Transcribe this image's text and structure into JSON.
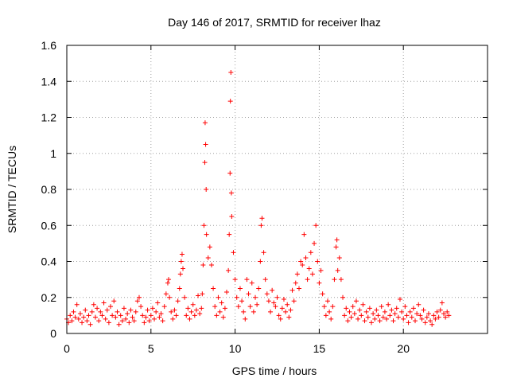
{
  "chart_data": {
    "type": "scatter",
    "title": "Day 146 of 2017, SRMTID for receiver lhaz",
    "xlabel": "GPS time / hours",
    "ylabel": "SRMTID / TECUs",
    "xlim": [
      0,
      25
    ],
    "ylim": [
      0,
      1.6
    ],
    "x_ticks": [
      0,
      5,
      10,
      15,
      20
    ],
    "x_tick_labels": [
      "0",
      "5",
      "10",
      "15",
      "20"
    ],
    "y_ticks": [
      0,
      0.2,
      0.4,
      0.6,
      0.8,
      1.0,
      1.2,
      1.4,
      1.6
    ],
    "y_tick_labels": [
      "0",
      "0.2",
      "0.4",
      "0.6",
      "0.8",
      "1",
      "1.2",
      "1.4",
      "1.6"
    ],
    "grid": true,
    "marker": "plus",
    "marker_color": "#ff0000",
    "series": [
      {
        "name": "SRMTID",
        "points": [
          [
            0.0,
            0.08
          ],
          [
            0.1,
            0.06
          ],
          [
            0.2,
            0.1
          ],
          [
            0.3,
            0.07
          ],
          [
            0.4,
            0.12
          ],
          [
            0.5,
            0.09
          ],
          [
            0.6,
            0.16
          ],
          [
            0.7,
            0.08
          ],
          [
            0.8,
            0.11
          ],
          [
            0.9,
            0.06
          ],
          [
            1.0,
            0.09
          ],
          [
            1.1,
            0.13
          ],
          [
            1.2,
            0.07
          ],
          [
            1.3,
            0.1
          ],
          [
            1.4,
            0.05
          ],
          [
            1.5,
            0.12
          ],
          [
            1.6,
            0.16
          ],
          [
            1.7,
            0.09
          ],
          [
            1.8,
            0.14
          ],
          [
            1.9,
            0.07
          ],
          [
            2.0,
            0.12
          ],
          [
            2.1,
            0.1
          ],
          [
            2.2,
            0.17
          ],
          [
            2.3,
            0.08
          ],
          [
            2.4,
            0.13
          ],
          [
            2.5,
            0.06
          ],
          [
            2.6,
            0.15
          ],
          [
            2.7,
            0.1
          ],
          [
            2.8,
            0.18
          ],
          [
            2.9,
            0.09
          ],
          [
            3.0,
            0.12
          ],
          [
            3.1,
            0.05
          ],
          [
            3.2,
            0.1
          ],
          [
            3.3,
            0.07
          ],
          [
            3.4,
            0.14
          ],
          [
            3.5,
            0.08
          ],
          [
            3.6,
            0.11
          ],
          [
            3.7,
            0.06
          ],
          [
            3.8,
            0.13
          ],
          [
            3.9,
            0.09
          ],
          [
            4.0,
            0.07
          ],
          [
            4.1,
            0.12
          ],
          [
            4.2,
            0.18
          ],
          [
            4.3,
            0.2
          ],
          [
            4.4,
            0.15
          ],
          [
            4.5,
            0.1
          ],
          [
            4.6,
            0.06
          ],
          [
            4.7,
            0.09
          ],
          [
            4.8,
            0.13
          ],
          [
            4.9,
            0.07
          ],
          [
            5.0,
            0.1
          ],
          [
            5.1,
            0.14
          ],
          [
            5.2,
            0.08
          ],
          [
            5.3,
            0.12
          ],
          [
            5.4,
            0.17
          ],
          [
            5.5,
            0.09
          ],
          [
            5.6,
            0.11
          ],
          [
            5.7,
            0.07
          ],
          [
            5.8,
            0.15
          ],
          [
            5.9,
            0.22
          ],
          [
            6.0,
            0.28
          ],
          [
            6.05,
            0.3
          ],
          [
            6.1,
            0.2
          ],
          [
            6.2,
            0.12
          ],
          [
            6.3,
            0.08
          ],
          [
            6.4,
            0.13
          ],
          [
            6.5,
            0.1
          ],
          [
            6.6,
            0.18
          ],
          [
            6.7,
            0.25
          ],
          [
            6.75,
            0.33
          ],
          [
            6.8,
            0.4
          ],
          [
            6.85,
            0.44
          ],
          [
            6.9,
            0.36
          ],
          [
            7.0,
            0.2
          ],
          [
            7.1,
            0.1
          ],
          [
            7.2,
            0.14
          ],
          [
            7.3,
            0.08
          ],
          [
            7.4,
            0.12
          ],
          [
            7.5,
            0.16
          ],
          [
            7.6,
            0.1
          ],
          [
            7.7,
            0.13
          ],
          [
            7.8,
            0.21
          ],
          [
            7.9,
            0.11
          ],
          [
            8.0,
            0.14
          ],
          [
            8.05,
            0.22
          ],
          [
            8.1,
            0.38
          ],
          [
            8.15,
            0.6
          ],
          [
            8.2,
            0.95
          ],
          [
            8.22,
            1.17
          ],
          [
            8.25,
            1.05
          ],
          [
            8.28,
            0.8
          ],
          [
            8.3,
            0.55
          ],
          [
            8.4,
            0.42
          ],
          [
            8.5,
            0.48
          ],
          [
            8.6,
            0.38
          ],
          [
            8.7,
            0.25
          ],
          [
            8.8,
            0.15
          ],
          [
            8.9,
            0.1
          ],
          [
            9.0,
            0.2
          ],
          [
            9.1,
            0.12
          ],
          [
            9.2,
            0.17
          ],
          [
            9.3,
            0.09
          ],
          [
            9.4,
            0.14
          ],
          [
            9.5,
            0.23
          ],
          [
            9.6,
            0.35
          ],
          [
            9.65,
            0.55
          ],
          [
            9.7,
            0.89
          ],
          [
            9.72,
            1.29
          ],
          [
            9.75,
            1.45
          ],
          [
            9.78,
            0.78
          ],
          [
            9.8,
            0.65
          ],
          [
            9.9,
            0.45
          ],
          [
            10.0,
            0.3
          ],
          [
            10.1,
            0.2
          ],
          [
            10.2,
            0.15
          ],
          [
            10.3,
            0.25
          ],
          [
            10.4,
            0.18
          ],
          [
            10.5,
            0.12
          ],
          [
            10.6,
            0.08
          ],
          [
            10.7,
            0.3
          ],
          [
            10.8,
            0.22
          ],
          [
            10.9,
            0.15
          ],
          [
            11.0,
            0.28
          ],
          [
            11.1,
            0.12
          ],
          [
            11.2,
            0.2
          ],
          [
            11.3,
            0.16
          ],
          [
            11.4,
            0.25
          ],
          [
            11.5,
            0.4
          ],
          [
            11.55,
            0.6
          ],
          [
            11.6,
            0.64
          ],
          [
            11.7,
            0.45
          ],
          [
            11.8,
            0.3
          ],
          [
            11.9,
            0.22
          ],
          [
            12.0,
            0.18
          ],
          [
            12.1,
            0.12
          ],
          [
            12.2,
            0.24
          ],
          [
            12.3,
            0.17
          ],
          [
            12.4,
            0.15
          ],
          [
            12.5,
            0.2
          ],
          [
            12.6,
            0.1
          ],
          [
            12.7,
            0.08
          ],
          [
            12.8,
            0.14
          ],
          [
            12.9,
            0.19
          ],
          [
            13.0,
            0.12
          ],
          [
            13.1,
            0.16
          ],
          [
            13.2,
            0.09
          ],
          [
            13.3,
            0.13
          ],
          [
            13.4,
            0.24
          ],
          [
            13.5,
            0.18
          ],
          [
            13.6,
            0.28
          ],
          [
            13.7,
            0.33
          ],
          [
            13.8,
            0.25
          ],
          [
            13.9,
            0.4
          ],
          [
            14.0,
            0.38
          ],
          [
            14.1,
            0.55
          ],
          [
            14.2,
            0.42
          ],
          [
            14.3,
            0.3
          ],
          [
            14.4,
            0.36
          ],
          [
            14.5,
            0.45
          ],
          [
            14.6,
            0.33
          ],
          [
            14.7,
            0.5
          ],
          [
            14.8,
            0.6
          ],
          [
            14.9,
            0.4
          ],
          [
            15.0,
            0.28
          ],
          [
            15.1,
            0.35
          ],
          [
            15.2,
            0.22
          ],
          [
            15.3,
            0.15
          ],
          [
            15.4,
            0.1
          ],
          [
            15.5,
            0.18
          ],
          [
            15.6,
            0.12
          ],
          [
            15.7,
            0.08
          ],
          [
            15.8,
            0.15
          ],
          [
            15.9,
            0.3
          ],
          [
            16.0,
            0.48
          ],
          [
            16.05,
            0.52
          ],
          [
            16.1,
            0.35
          ],
          [
            16.2,
            0.42
          ],
          [
            16.3,
            0.3
          ],
          [
            16.4,
            0.2
          ],
          [
            16.5,
            0.1
          ],
          [
            16.6,
            0.14
          ],
          [
            16.7,
            0.07
          ],
          [
            16.8,
            0.12
          ],
          [
            16.9,
            0.09
          ],
          [
            17.0,
            0.15
          ],
          [
            17.1,
            0.11
          ],
          [
            17.2,
            0.18
          ],
          [
            17.3,
            0.08
          ],
          [
            17.4,
            0.13
          ],
          [
            17.5,
            0.1
          ],
          [
            17.6,
            0.16
          ],
          [
            17.7,
            0.07
          ],
          [
            17.8,
            0.12
          ],
          [
            17.9,
            0.09
          ],
          [
            18.0,
            0.14
          ],
          [
            18.1,
            0.06
          ],
          [
            18.2,
            0.11
          ],
          [
            18.3,
            0.08
          ],
          [
            18.4,
            0.13
          ],
          [
            18.5,
            0.1
          ],
          [
            18.6,
            0.07
          ],
          [
            18.7,
            0.15
          ],
          [
            18.8,
            0.09
          ],
          [
            18.9,
            0.12
          ],
          [
            19.0,
            0.08
          ],
          [
            19.1,
            0.16
          ],
          [
            19.2,
            0.1
          ],
          [
            19.3,
            0.13
          ],
          [
            19.4,
            0.07
          ],
          [
            19.5,
            0.11
          ],
          [
            19.6,
            0.14
          ],
          [
            19.7,
            0.09
          ],
          [
            19.8,
            0.19
          ],
          [
            19.9,
            0.12
          ],
          [
            20.0,
            0.08
          ],
          [
            20.1,
            0.15
          ],
          [
            20.2,
            0.1
          ],
          [
            20.3,
            0.06
          ],
          [
            20.4,
            0.12
          ],
          [
            20.5,
            0.09
          ],
          [
            20.6,
            0.14
          ],
          [
            20.7,
            0.07
          ],
          [
            20.8,
            0.11
          ],
          [
            20.9,
            0.16
          ],
          [
            21.0,
            0.1
          ],
          [
            21.1,
            0.08
          ],
          [
            21.2,
            0.13
          ],
          [
            21.3,
            0.06
          ],
          [
            21.4,
            0.09
          ],
          [
            21.5,
            0.11
          ],
          [
            21.6,
            0.07
          ],
          [
            21.7,
            0.05
          ],
          [
            21.8,
            0.1
          ],
          [
            21.9,
            0.08
          ],
          [
            22.0,
            0.12
          ],
          [
            22.1,
            0.09
          ],
          [
            22.2,
            0.13
          ],
          [
            22.3,
            0.17
          ],
          [
            22.4,
            0.11
          ],
          [
            22.5,
            0.09
          ],
          [
            22.6,
            0.12
          ],
          [
            22.7,
            0.1
          ]
        ]
      }
    ]
  }
}
